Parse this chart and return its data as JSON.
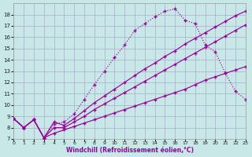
{
  "xlabel": "Windchill (Refroidissement éolien,°C)",
  "bg_color": "#c8e8e8",
  "grid_color": "#aaaacc",
  "line_color": "#990099",
  "xlim": [
    0,
    23
  ],
  "ylim": [
    7,
    19
  ],
  "xticks": [
    0,
    1,
    2,
    3,
    4,
    5,
    6,
    7,
    8,
    9,
    10,
    11,
    12,
    13,
    14,
    15,
    16,
    17,
    18,
    19,
    20,
    21,
    22,
    23
  ],
  "yticks": [
    7,
    8,
    9,
    10,
    11,
    12,
    13,
    14,
    15,
    16,
    17,
    18
  ],
  "line1_x": [
    0,
    1,
    2,
    3,
    4,
    5,
    6,
    7,
    8,
    9,
    10,
    11,
    12,
    13,
    14,
    15,
    16,
    17,
    18,
    19,
    20,
    21,
    22,
    23
  ],
  "line1_y": [
    8.8,
    8.0,
    8.7,
    7.1,
    8.5,
    8.2,
    8.8,
    9.5,
    10.2,
    10.8,
    11.4,
    12.0,
    12.6,
    13.2,
    13.7,
    14.3,
    14.8,
    15.4,
    15.9,
    16.4,
    16.9,
    17.4,
    17.9,
    18.3
  ],
  "line2_x": [
    0,
    1,
    2,
    3,
    4,
    5,
    6,
    7,
    8,
    9,
    10,
    11,
    12,
    13,
    14,
    15,
    16,
    17,
    18,
    19,
    20,
    21,
    22,
    23
  ],
  "line2_y": [
    8.8,
    8.0,
    8.7,
    7.1,
    8.0,
    8.0,
    8.5,
    9.0,
    9.6,
    10.1,
    10.6,
    11.1,
    11.6,
    12.1,
    12.6,
    13.1,
    13.6,
    14.1,
    14.6,
    15.1,
    15.6,
    16.1,
    16.6,
    17.1
  ],
  "line3_x": [
    0,
    1,
    2,
    3,
    4,
    5,
    6,
    7,
    8,
    9,
    10,
    11,
    12,
    13,
    14,
    15,
    16,
    17,
    18,
    19,
    20,
    21,
    22,
    23
  ],
  "line3_y": [
    8.8,
    8.0,
    8.7,
    7.1,
    7.5,
    7.8,
    8.1,
    8.4,
    8.7,
    9.0,
    9.3,
    9.6,
    9.9,
    10.2,
    10.5,
    10.8,
    11.1,
    11.4,
    11.8,
    12.2,
    12.5,
    12.8,
    13.1,
    13.4
  ],
  "line4_x": [
    0,
    1,
    2,
    3,
    4,
    5,
    6,
    7,
    8,
    9,
    10,
    11,
    12,
    13,
    14,
    15,
    16,
    17,
    18,
    19,
    20,
    21,
    22,
    23
  ],
  "line4_y": [
    8.8,
    8.0,
    8.7,
    7.1,
    8.3,
    8.5,
    9.2,
    10.5,
    11.8,
    13.0,
    14.2,
    15.3,
    16.6,
    17.2,
    17.8,
    18.3,
    18.5,
    17.5,
    17.2,
    15.3,
    14.7,
    12.8,
    11.2,
    10.5
  ],
  "line4_style": "dotted"
}
